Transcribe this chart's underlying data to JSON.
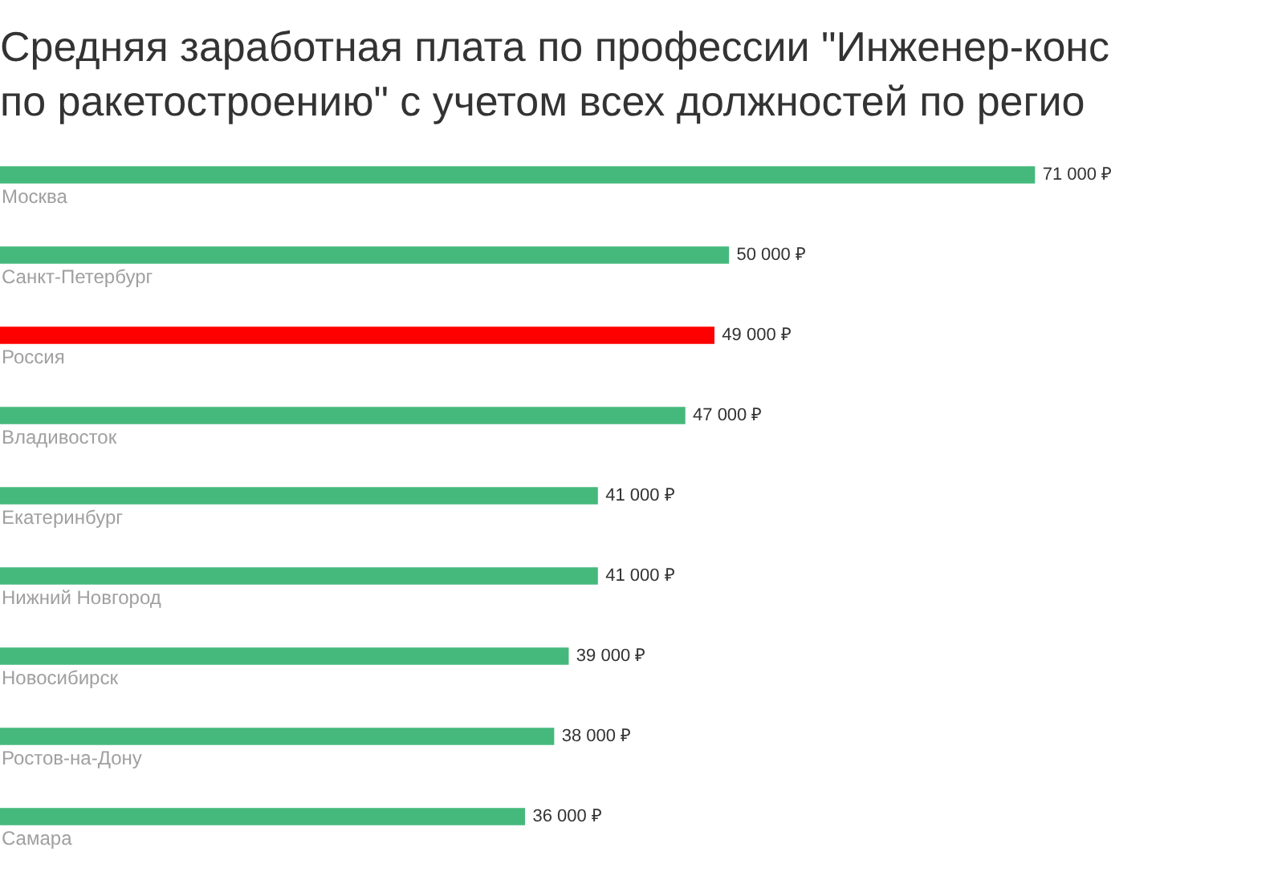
{
  "chart_data": {
    "type": "bar",
    "orientation": "horizontal",
    "title": "Средняя заработная плата по профессии \"Инженер-конс\nпо ракетостроению\" с учетом всех должностей по регио",
    "categories": [
      "Москва",
      "Санкт-Петербург",
      "Россия",
      "Владивосток",
      "Екатеринбург",
      "Нижний Новгород",
      "Новосибирск",
      "Ростов-на-Дону",
      "Самара"
    ],
    "values": [
      71000,
      50000,
      49000,
      47000,
      41000,
      41000,
      39000,
      38000,
      36000
    ],
    "colors": [
      "#45b97c",
      "#45b97c",
      "#ff0000",
      "#45b97c",
      "#45b97c",
      "#45b97c",
      "#45b97c",
      "#45b97c",
      "#45b97c"
    ],
    "value_labels": [
      "71 000 ₽",
      "50 000 ₽",
      "49 000 ₽",
      "47 000 ₽",
      "41 000 ₽",
      "41 000 ₽",
      "39 000 ₽",
      "38 000 ₽",
      "36 000 ₽"
    ],
    "legend": false,
    "tick_labels": false
  }
}
